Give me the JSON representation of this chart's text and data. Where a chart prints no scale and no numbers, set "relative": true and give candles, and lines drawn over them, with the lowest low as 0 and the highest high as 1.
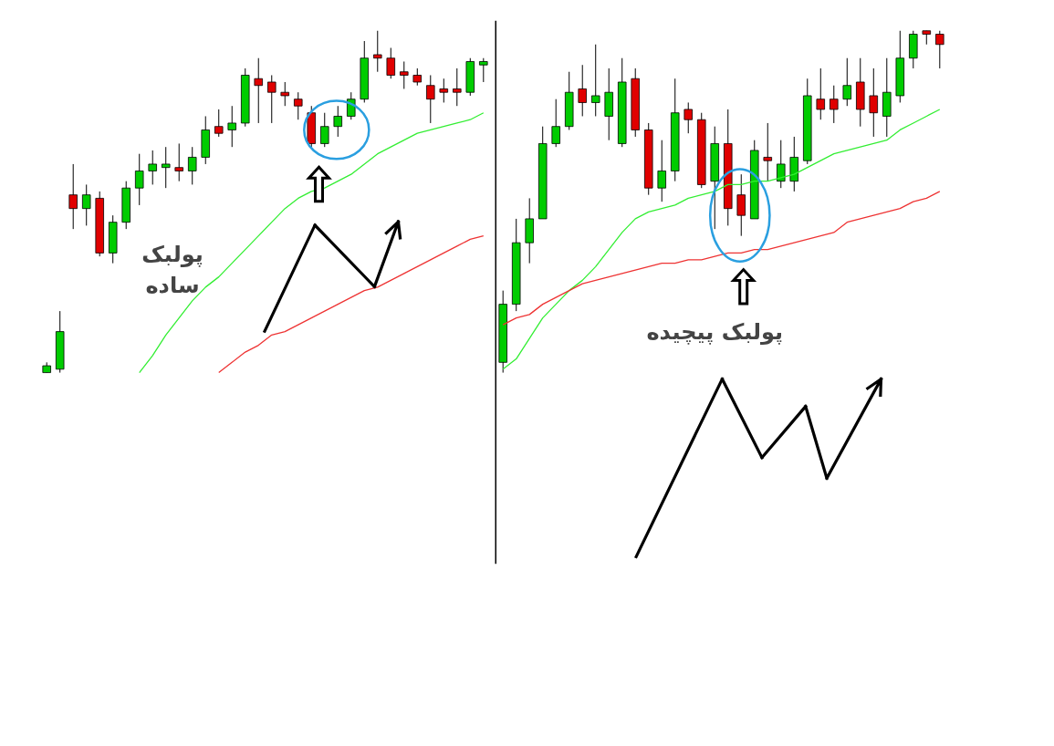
{
  "chart_data": [
    {
      "type": "candlestick",
      "relative": true,
      "categories": [
        null,
        null,
        null,
        null,
        null,
        null,
        null,
        null,
        null,
        null,
        null,
        null,
        null,
        null,
        null,
        null,
        null,
        null,
        null,
        null,
        null,
        null,
        null,
        null,
        null,
        null,
        null,
        null,
        null,
        null,
        null,
        null,
        null,
        null
      ],
      "ohlc": [
        [
          0.0,
          0.03,
          0.0,
          0.02
        ],
        [
          0.01,
          0.18,
          0.0,
          0.12
        ],
        [
          0.52,
          0.61,
          0.42,
          0.48
        ],
        [
          0.48,
          0.55,
          0.43,
          0.52
        ],
        [
          0.51,
          0.53,
          0.34,
          0.35
        ],
        [
          0.35,
          0.46,
          0.32,
          0.44
        ],
        [
          0.44,
          0.56,
          0.42,
          0.54
        ],
        [
          0.54,
          0.64,
          0.49,
          0.59
        ],
        [
          0.59,
          0.65,
          0.55,
          0.61
        ],
        [
          0.6,
          0.66,
          0.54,
          0.61
        ],
        [
          0.6,
          0.67,
          0.56,
          0.59
        ],
        [
          0.59,
          0.66,
          0.55,
          0.63
        ],
        [
          0.63,
          0.75,
          0.61,
          0.71
        ],
        [
          0.72,
          0.77,
          0.69,
          0.7
        ],
        [
          0.71,
          0.78,
          0.66,
          0.73
        ],
        [
          0.73,
          0.89,
          0.72,
          0.87
        ],
        [
          0.86,
          0.92,
          0.73,
          0.84
        ],
        [
          0.85,
          0.87,
          0.73,
          0.82
        ],
        [
          0.82,
          0.85,
          0.78,
          0.81
        ],
        [
          0.8,
          0.82,
          0.74,
          0.78
        ],
        [
          0.76,
          0.78,
          0.66,
          0.67
        ],
        [
          0.67,
          0.76,
          0.66,
          0.72
        ],
        [
          0.72,
          0.78,
          0.69,
          0.75
        ],
        [
          0.75,
          0.82,
          0.74,
          0.8
        ],
        [
          0.8,
          0.97,
          0.79,
          0.92
        ],
        [
          0.93,
          1.0,
          0.88,
          0.92
        ],
        [
          0.92,
          0.95,
          0.86,
          0.87
        ],
        [
          0.88,
          0.91,
          0.83,
          0.87
        ],
        [
          0.87,
          0.89,
          0.84,
          0.85
        ],
        [
          0.84,
          0.87,
          0.73,
          0.8
        ],
        [
          0.83,
          0.86,
          0.79,
          0.82
        ],
        [
          0.83,
          0.89,
          0.78,
          0.82
        ],
        [
          0.82,
          0.92,
          0.81,
          0.91
        ],
        [
          0.9,
          0.92,
          0.85,
          0.91
        ]
      ],
      "colors": [
        "#00cc00",
        "#00cc00",
        "#e00000",
        "#00cc00",
        "#e00000",
        "#00cc00",
        "#00cc00",
        "#00cc00",
        "#00cc00",
        "#00cc00",
        "#e00000",
        "#00cc00",
        "#00cc00",
        "#e00000",
        "#00cc00",
        "#00cc00",
        "#e00000",
        "#e00000",
        "#e00000",
        "#e00000",
        "#e00000",
        "#00cc00",
        "#00cc00",
        "#00cc00",
        "#00cc00",
        "#e00000",
        "#e00000",
        "#e00000",
        "#e00000",
        "#e00000",
        "#e00000",
        "#e00000",
        "#00cc00",
        "#00cc00"
      ],
      "series": [
        {
          "type": "line",
          "color": "#33ee33",
          "values": [
            null,
            null,
            null,
            null,
            null,
            null,
            null,
            0.0,
            0.05,
            0.11,
            0.16,
            0.21,
            0.25,
            0.28,
            0.32,
            0.36,
            0.4,
            0.44,
            0.48,
            0.51,
            0.53,
            0.54,
            0.56,
            0.58,
            0.61,
            0.64,
            0.66,
            0.68,
            0.7,
            0.71,
            0.72,
            0.73,
            0.74,
            0.76
          ]
        },
        {
          "type": "line",
          "color": "#ee3333",
          "values": [
            null,
            null,
            null,
            null,
            null,
            null,
            null,
            null,
            null,
            null,
            null,
            null,
            null,
            0.0,
            0.03,
            0.06,
            0.08,
            0.11,
            0.12,
            0.14,
            0.16,
            0.18,
            0.2,
            0.22,
            0.24,
            0.25,
            0.27,
            0.29,
            0.31,
            0.33,
            0.35,
            0.37,
            0.39,
            0.4
          ]
        }
      ],
      "annotations": [
        "پولبک\nساده"
      ]
    },
    {
      "type": "candlestick",
      "relative": true,
      "categories": [
        null,
        null,
        null,
        null,
        null,
        null,
        null,
        null,
        null,
        null,
        null,
        null,
        null,
        null,
        null,
        null,
        null,
        null,
        null,
        null,
        null,
        null,
        null,
        null,
        null,
        null,
        null,
        null,
        null,
        null,
        null,
        null,
        null,
        null
      ],
      "ohlc": [
        [
          0.03,
          0.24,
          0.0,
          0.2
        ],
        [
          0.2,
          0.45,
          0.18,
          0.38
        ],
        [
          0.38,
          0.51,
          0.32,
          0.45
        ],
        [
          0.45,
          0.72,
          0.45,
          0.67
        ],
        [
          0.67,
          0.8,
          0.66,
          0.72
        ],
        [
          0.72,
          0.88,
          0.71,
          0.82
        ],
        [
          0.83,
          0.9,
          0.75,
          0.79
        ],
        [
          0.79,
          0.96,
          0.75,
          0.81
        ],
        [
          0.75,
          0.89,
          0.68,
          0.82
        ],
        [
          0.67,
          0.92,
          0.66,
          0.85
        ],
        [
          0.86,
          0.89,
          0.69,
          0.71
        ],
        [
          0.71,
          0.73,
          0.52,
          0.54
        ],
        [
          0.54,
          0.68,
          0.5,
          0.59
        ],
        [
          0.59,
          0.86,
          0.56,
          0.76
        ],
        [
          0.77,
          0.79,
          0.7,
          0.74
        ],
        [
          0.74,
          0.76,
          0.54,
          0.55
        ],
        [
          0.56,
          0.72,
          0.42,
          0.67
        ],
        [
          0.67,
          0.77,
          0.43,
          0.48
        ],
        [
          0.52,
          0.58,
          0.4,
          0.46
        ],
        [
          0.45,
          0.68,
          0.45,
          0.65
        ],
        [
          0.63,
          0.73,
          0.56,
          0.62
        ],
        [
          0.56,
          0.68,
          0.54,
          0.61
        ],
        [
          0.56,
          0.69,
          0.53,
          0.63
        ],
        [
          0.62,
          0.86,
          0.61,
          0.81
        ],
        [
          0.8,
          0.89,
          0.74,
          0.77
        ],
        [
          0.8,
          0.84,
          0.73,
          0.77
        ],
        [
          0.8,
          0.92,
          0.78,
          0.84
        ],
        [
          0.85,
          0.92,
          0.72,
          0.77
        ],
        [
          0.81,
          0.89,
          0.69,
          0.76
        ],
        [
          0.75,
          0.92,
          0.69,
          0.82
        ],
        [
          0.81,
          1.0,
          0.79,
          0.92
        ],
        [
          0.92,
          1.0,
          0.89,
          0.99
        ],
        [
          1.0,
          1.0,
          0.96,
          0.99
        ],
        [
          0.99,
          1.0,
          0.89,
          0.96
        ]
      ],
      "colors": [
        "#00cc00",
        "#00cc00",
        "#00cc00",
        "#00cc00",
        "#00cc00",
        "#00cc00",
        "#e00000",
        "#00cc00",
        "#00cc00",
        "#00cc00",
        "#e00000",
        "#e00000",
        "#00cc00",
        "#00cc00",
        "#e00000",
        "#e00000",
        "#00cc00",
        "#e00000",
        "#e00000",
        "#00cc00",
        "#e00000",
        "#00cc00",
        "#00cc00",
        "#00cc00",
        "#e00000",
        "#e00000",
        "#00cc00",
        "#e00000",
        "#e00000",
        "#00cc00",
        "#00cc00",
        "#00cc00",
        "#e00000",
        "#e00000"
      ],
      "series": [
        {
          "type": "line",
          "color": "#33ee33",
          "values": [
            0.01,
            0.04,
            0.1,
            0.16,
            0.2,
            0.24,
            0.27,
            0.31,
            0.36,
            0.41,
            0.45,
            0.47,
            0.48,
            0.49,
            0.51,
            0.52,
            0.53,
            0.55,
            0.55,
            0.56,
            0.56,
            0.57,
            0.58,
            0.6,
            0.62,
            0.64,
            0.65,
            0.66,
            0.67,
            0.68,
            0.71,
            0.73,
            0.75,
            0.77
          ]
        },
        {
          "type": "line",
          "color": "#ee3333",
          "values": [
            0.14,
            0.16,
            0.17,
            0.2,
            0.22,
            0.24,
            0.26,
            0.27,
            0.28,
            0.29,
            0.3,
            0.31,
            0.32,
            0.32,
            0.33,
            0.33,
            0.34,
            0.35,
            0.35,
            0.36,
            0.36,
            0.37,
            0.38,
            0.39,
            0.4,
            0.41,
            0.44,
            0.45,
            0.46,
            0.47,
            0.48,
            0.5,
            0.51,
            0.53
          ]
        }
      ],
      "annotations": [
        "پولبک پیچیده"
      ]
    }
  ]
}
